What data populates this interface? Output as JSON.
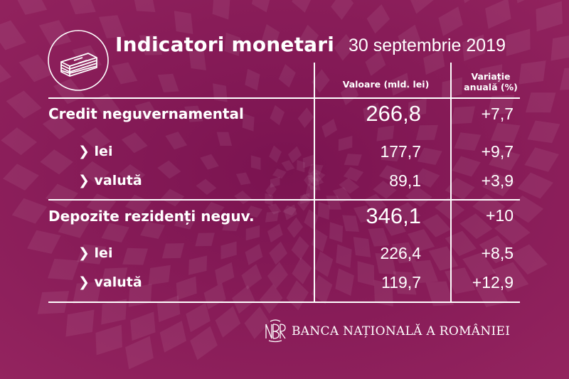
{
  "header": {
    "title": "Indicatori monetari",
    "date": "30 septembrie 2019",
    "icon": "money-stack-icon"
  },
  "columns": {
    "value": "Valoare (mld. lei)",
    "variation_line1": "Variație",
    "variation_line2": "anuală (%)"
  },
  "rows": [
    {
      "label": "Credit neguvernamental",
      "value": "266,8",
      "variation": "+7,7"
    },
    {
      "label": "lei",
      "value": "177,7",
      "variation": "+9,7"
    },
    {
      "label": "valută",
      "value": "89,1",
      "variation": "+3,9"
    },
    {
      "label": "Depozite rezidenți neguv.",
      "value": "346,1",
      "variation": "+10"
    },
    {
      "label": "lei",
      "value": "226,4",
      "variation": "+8,5"
    },
    {
      "label": "valută",
      "value": "119,7",
      "variation": "+12,9"
    }
  ],
  "footer": {
    "bank_name": "BANCA NAȚIONALĂ A ROMÂNIEI",
    "logo": "bnr-monogram-logo"
  },
  "colors": {
    "background": "#8c1d5a",
    "text": "#ffffff"
  }
}
